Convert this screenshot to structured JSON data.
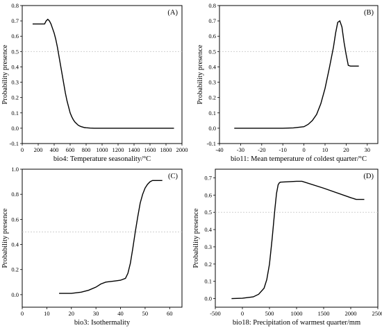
{
  "chart_data": [
    {
      "type": "line",
      "panel_label": "(A)",
      "xlabel": "bio4: Temperature seasonality/°C",
      "ylabel": "Probability presence",
      "xlim": [
        0,
        2000
      ],
      "ylim": [
        -0.1,
        0.8
      ],
      "xticks": [
        0,
        200,
        400,
        600,
        800,
        1000,
        1200,
        1400,
        1600,
        1800,
        2000
      ],
      "yticks": [
        -0.1,
        0.0,
        0.1,
        0.2,
        0.3,
        0.4,
        0.5,
        0.6,
        0.7,
        0.8
      ],
      "reference_line": 0.5,
      "series": [
        {
          "x": [
            130,
            280,
            300,
            320,
            340,
            360,
            380,
            400,
            420,
            440,
            460,
            480,
            500,
            520,
            540,
            560,
            580,
            600,
            620,
            640,
            660,
            680,
            700,
            720,
            740,
            760,
            780,
            800,
            850,
            900,
            1000,
            1200,
            1500,
            1900
          ],
          "y": [
            0.68,
            0.68,
            0.7,
            0.71,
            0.7,
            0.68,
            0.65,
            0.62,
            0.58,
            0.53,
            0.47,
            0.41,
            0.35,
            0.29,
            0.23,
            0.18,
            0.14,
            0.1,
            0.075,
            0.055,
            0.04,
            0.03,
            0.02,
            0.014,
            0.01,
            0.007,
            0.004,
            0.003,
            0.001,
            0.0,
            0.0,
            0.0,
            0.0,
            0.0
          ]
        }
      ]
    },
    {
      "type": "line",
      "panel_label": "(B)",
      "xlabel": "bio11: Mean temperature of coldest quarter/°C",
      "ylabel": "Probability presence",
      "xlim": [
        -40,
        35
      ],
      "ylim": [
        -0.1,
        0.8
      ],
      "xticks": [
        -40,
        -30,
        -20,
        -10,
        0,
        10,
        20,
        30
      ],
      "yticks": [
        -0.1,
        0.0,
        0.1,
        0.2,
        0.3,
        0.4,
        0.5,
        0.6,
        0.7,
        0.8
      ],
      "reference_line": 0.5,
      "series": [
        {
          "x": [
            -33,
            -10,
            -5,
            0,
            2,
            4,
            6,
            8,
            10,
            12,
            14,
            15,
            16,
            17,
            18,
            19,
            20,
            21,
            22,
            26
          ],
          "y": [
            0.0,
            0.0,
            0.002,
            0.01,
            0.025,
            0.05,
            0.09,
            0.16,
            0.26,
            0.39,
            0.53,
            0.62,
            0.69,
            0.7,
            0.66,
            0.56,
            0.48,
            0.41,
            0.405,
            0.405
          ]
        }
      ]
    },
    {
      "type": "line",
      "panel_label": "(C)",
      "xlabel": "bio3: Isothermality",
      "ylabel": "Probability presence",
      "xlim": [
        0,
        65
      ],
      "ylim": [
        -0.1,
        1.0
      ],
      "xticks": [
        0,
        10,
        20,
        30,
        40,
        50,
        60
      ],
      "yticks": [
        0.0,
        0.2,
        0.4,
        0.6,
        0.8,
        1.0
      ],
      "reference_line": 0.5,
      "series": [
        {
          "x": [
            15,
            20,
            24,
            27,
            30,
            32,
            34,
            36,
            38,
            40,
            42,
            43,
            44,
            45,
            46,
            47,
            48,
            49,
            50,
            51,
            52,
            53,
            54,
            55,
            57
          ],
          "y": [
            0.01,
            0.01,
            0.02,
            0.035,
            0.06,
            0.085,
            0.1,
            0.105,
            0.11,
            0.115,
            0.13,
            0.17,
            0.25,
            0.37,
            0.5,
            0.62,
            0.73,
            0.8,
            0.85,
            0.88,
            0.9,
            0.91,
            0.91,
            0.91,
            0.91
          ]
        }
      ]
    },
    {
      "type": "line",
      "panel_label": "(D)",
      "xlabel": "bio18: Precipitation of warmest quarter/mm",
      "ylabel": "Probability presence",
      "xlim": [
        -500,
        2500
      ],
      "ylim": [
        -0.05,
        0.75
      ],
      "xticks": [
        -500,
        0,
        500,
        1000,
        1500,
        2000,
        2500
      ],
      "yticks": [
        0.0,
        0.1,
        0.2,
        0.3,
        0.4,
        0.5,
        0.6,
        0.7
      ],
      "reference_line": 0.5,
      "series": [
        {
          "x": [
            -200,
            0,
            200,
            300,
            400,
            450,
            500,
            550,
            600,
            630,
            660,
            680,
            700,
            1000,
            1100,
            1500,
            2000,
            2100,
            2250
          ],
          "y": [
            0.0,
            0.002,
            0.01,
            0.025,
            0.06,
            0.11,
            0.2,
            0.35,
            0.52,
            0.61,
            0.66,
            0.67,
            0.675,
            0.68,
            0.68,
            0.64,
            0.585,
            0.575,
            0.575
          ]
        }
      ]
    }
  ]
}
